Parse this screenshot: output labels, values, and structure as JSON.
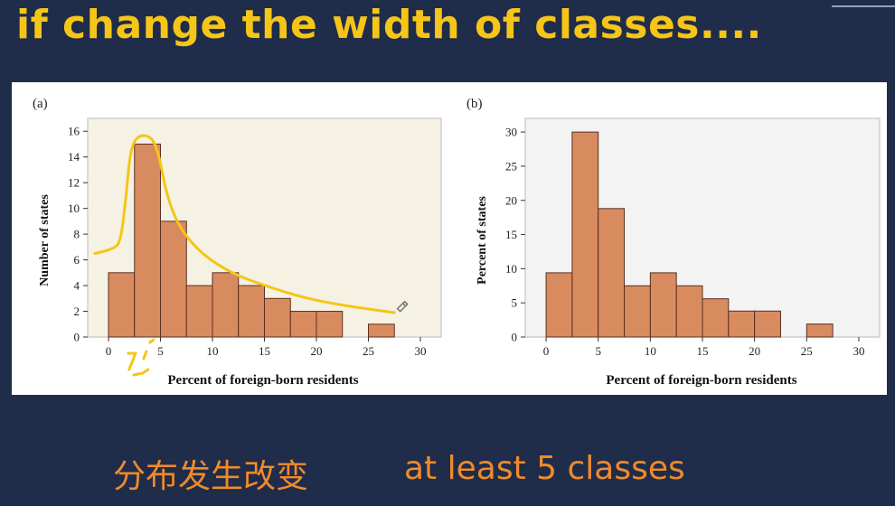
{
  "slide": {
    "title": "if change the width of classes....",
    "note_left": "分布发生改变",
    "note_right": "at least 5 classes"
  },
  "colors": {
    "title": "#f5c518",
    "background": "#1f2c4a",
    "bar_fill": "#d98b60",
    "bar_stroke": "#5a3020",
    "plot_bg_a": "#f5f2e3",
    "plot_bg_b": "#f3f3f3",
    "annotation": "#f5c518",
    "note": "#f08a2a"
  },
  "chart_data": [
    {
      "panel_label": "(a)",
      "type": "bar",
      "bin_width": 2.5,
      "bins": [
        [
          0,
          2.5
        ],
        [
          2.5,
          5
        ],
        [
          5,
          7.5
        ],
        [
          7.5,
          10
        ],
        [
          10,
          12.5
        ],
        [
          12.5,
          15
        ],
        [
          15,
          17.5
        ],
        [
          17.5,
          20
        ],
        [
          20,
          22.5
        ],
        [
          22.5,
          25
        ],
        [
          25,
          27.5
        ]
      ],
      "values": [
        5,
        15,
        9,
        4,
        5,
        4,
        3,
        2,
        2,
        0,
        1
      ],
      "xlabel": "Percent of foreign-born residents",
      "ylabel": "Number of states",
      "xlim": [
        -2,
        32
      ],
      "ylim": [
        0,
        17
      ],
      "xticks": [
        "0",
        "5",
        "10",
        "15",
        "20",
        "25",
        "30"
      ],
      "yticks": [
        "0",
        "2",
        "4",
        "6",
        "8",
        "10",
        "12",
        "14",
        "16"
      ],
      "annotation": "hand-drawn yellow curve tracing the shape of the distribution"
    },
    {
      "panel_label": "(b)",
      "type": "bar",
      "bin_width": 2.5,
      "bins": [
        [
          0,
          2.5
        ],
        [
          2.5,
          5
        ],
        [
          5,
          7.5
        ],
        [
          7.5,
          10
        ],
        [
          10,
          12.5
        ],
        [
          12.5,
          15
        ],
        [
          15,
          17.5
        ],
        [
          17.5,
          20
        ],
        [
          20,
          22.5
        ],
        [
          22.5,
          25
        ],
        [
          25,
          27.5
        ]
      ],
      "values": [
        9.4,
        30,
        18.8,
        7.5,
        9.4,
        7.5,
        5.6,
        3.8,
        3.8,
        0,
        1.9
      ],
      "xlabel": "Percent of foreign-born residents",
      "ylabel": "Percent of states",
      "xlim": [
        -2,
        32
      ],
      "ylim": [
        0,
        32
      ],
      "xticks": [
        "0",
        "5",
        "10",
        "15",
        "20",
        "25",
        "30"
      ],
      "yticks": [
        "0",
        "5",
        "10",
        "15",
        "20",
        "25",
        "30"
      ]
    }
  ]
}
